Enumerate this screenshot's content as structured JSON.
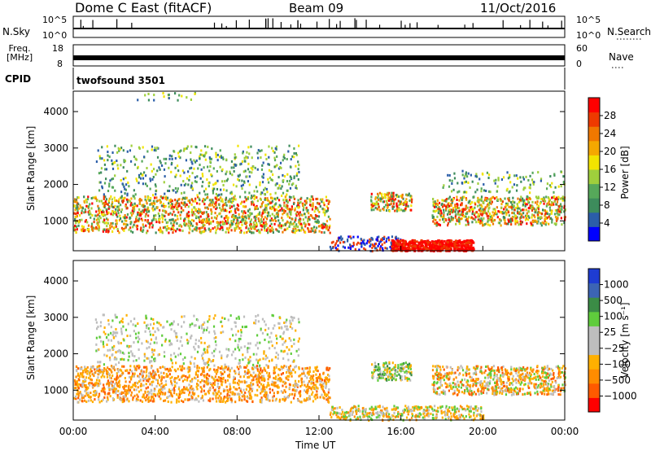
{
  "header": {
    "title": "Dome C East (fitACF)",
    "beam": "Beam 09",
    "date": "11/Oct/2016"
  },
  "top_panels": {
    "nsky_label": "N.Sky",
    "nsky_ticks": [
      "10^5",
      "10^0"
    ],
    "nsearch_label": "N.Search",
    "nsearch_ticks": [
      "10^5",
      "10^0"
    ],
    "freq_label_line1": "Freq.",
    "freq_label_line2": "[MHz]",
    "freq_ticks": [
      "18",
      "8"
    ],
    "nave_label": "Nave",
    "nave_ticks": [
      "60",
      "0"
    ],
    "cpid_label": "CPID",
    "cpid_value": "twofsound 3501"
  },
  "colors": {
    "power_scale": [
      "#0000ff",
      "#2b5ea9",
      "#3d8c5c",
      "#56a85a",
      "#9fcf3c",
      "#f2e400",
      "#f5a800",
      "#f07800",
      "#ee3a00",
      "#ff0000"
    ],
    "velocity_scale": [
      "#ff0000",
      "#ff5a00",
      "#ff8c00",
      "#ffb000",
      "#bebebe",
      "#bebebe",
      "#5fcc3c",
      "#3b8c46",
      "#3c64b4",
      "#1e3cd2"
    ]
  },
  "chart_data": [
    {
      "type": "heatmap",
      "name": "power",
      "xlabel": "",
      "ylabel": "Slant Range [km]",
      "yticks": [
        "4000",
        "3000",
        "2000",
        "1000"
      ],
      "ylim": [
        180,
        4560
      ],
      "xlim": [
        0,
        24
      ],
      "colorbar_label": "Power [dB]",
      "colorbar_ticks": [
        "28",
        "24",
        "20",
        "16",
        "12",
        "8",
        "4"
      ],
      "colorbar_range": [
        0,
        30
      ]
    },
    {
      "type": "heatmap",
      "name": "velocity",
      "xlabel": "Time UT",
      "ylabel": "Slant Range [km]",
      "yticks": [
        "4000",
        "3000",
        "2000",
        "1000"
      ],
      "ylim": [
        180,
        4560
      ],
      "xlim": [
        0,
        24
      ],
      "xticks": [
        "00:00",
        "04:00",
        "08:00",
        "12:00",
        "16:00",
        "20:00",
        "00:00"
      ],
      "colorbar_label": "Velocity [m s⁻¹]",
      "colorbar_ticks": [
        "1000",
        "500",
        "100",
        "25",
        "−25",
        "−100",
        "−500",
        "−1000"
      ]
    }
  ]
}
